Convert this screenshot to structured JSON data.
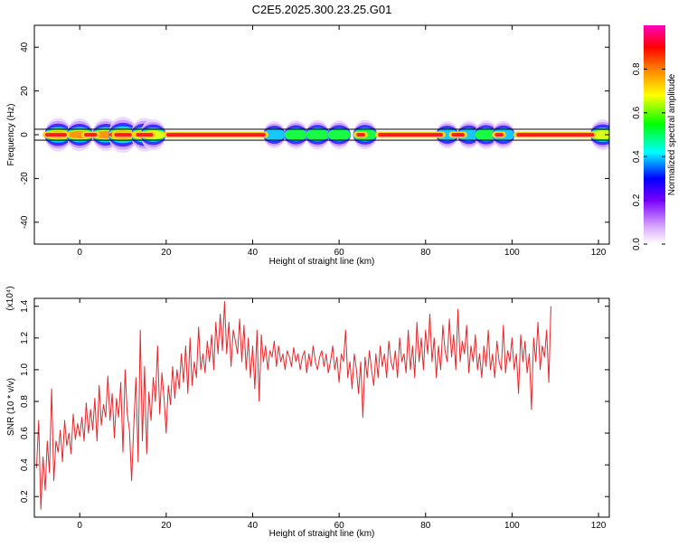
{
  "title": "C2E5.2025.300.23.25.G01",
  "colors": {
    "snr_line": "#e8262a",
    "axis": "#000000",
    "band_outline": "#000000"
  },
  "chart_data": [
    {
      "type": "heatmap",
      "xlabel": "Height of straight line (km)",
      "ylabel": "Frequency (Hz)",
      "xlim": [
        -10.5,
        122.5
      ],
      "ylim": [
        -50,
        50
      ],
      "xticks": [
        0,
        20,
        40,
        60,
        80,
        100,
        120
      ],
      "yticks": [
        -40,
        -20,
        0,
        20,
        40
      ],
      "colorbar": {
        "label": "Normalized spectral amplitude",
        "range": [
          0.0,
          1.0
        ],
        "ticks": [
          "0.0",
          "0.2",
          "0.4",
          "0.6",
          "0.8"
        ]
      },
      "band": {
        "center_hz": 0,
        "halfwidth_hz": 2.5
      },
      "bursts": [
        {
          "x": -5,
          "amp": 0.85
        },
        {
          "x": 0,
          "amp": 0.8
        },
        {
          "x": 6,
          "amp": 0.8
        },
        {
          "x": 10,
          "amp": 1.0
        },
        {
          "x": 15,
          "amp": 0.85
        },
        {
          "x": 17,
          "amp": 0.7
        },
        {
          "x": 45,
          "amp": 0.45
        },
        {
          "x": 50,
          "amp": 0.55
        },
        {
          "x": 55,
          "amp": 0.6
        },
        {
          "x": 60,
          "amp": 0.55
        },
        {
          "x": 66,
          "amp": 0.6
        },
        {
          "x": 85,
          "amp": 0.45
        },
        {
          "x": 90,
          "amp": 0.5
        },
        {
          "x": 94,
          "amp": 0.55
        },
        {
          "x": 98,
          "amp": 0.5
        },
        {
          "x": 121,
          "amp": 0.7
        }
      ],
      "ridges": [
        [
          -8,
          -3
        ],
        [
          1,
          4
        ],
        [
          8,
          12
        ],
        [
          13,
          17
        ],
        [
          20,
          43
        ],
        [
          64,
          66
        ],
        [
          69,
          84
        ],
        [
          86,
          89
        ],
        [
          96,
          98
        ],
        [
          101,
          119
        ]
      ]
    },
    {
      "type": "line",
      "xlabel": "Height of straight line (km)",
      "ylabel": "SNR (10 * v/v)",
      "scale_label": "(x10⁴)",
      "xlim": [
        -10.5,
        122.5
      ],
      "ylim": [
        0.07,
        1.45
      ],
      "xticks": [
        0,
        20,
        40,
        60,
        80,
        100,
        120
      ],
      "yticks": [
        "0.2",
        "0.4",
        "0.6",
        "0.8",
        "1.0",
        "1.2",
        "1.4"
      ],
      "series": [
        {
          "x_start": -10,
          "x_step": 0.5,
          "values": [
            0.38,
            0.68,
            0.12,
            0.45,
            0.24,
            0.55,
            0.35,
            0.88,
            0.3,
            0.55,
            0.48,
            0.62,
            0.42,
            0.68,
            0.52,
            0.6,
            0.47,
            0.72,
            0.56,
            0.66,
            0.58,
            0.7,
            0.55,
            0.79,
            0.6,
            0.75,
            0.62,
            0.82,
            0.55,
            0.9,
            0.65,
            0.78,
            0.7,
            0.96,
            0.68,
            0.85,
            0.57,
            0.82,
            0.7,
            0.92,
            0.48,
            1.0,
            0.72,
            0.62,
            0.3,
            0.65,
            0.95,
            0.42,
            1.25,
            0.55,
            1.02,
            0.47,
            0.86,
            0.68,
            0.95,
            0.8,
            1.15,
            0.72,
            0.98,
            0.82,
            0.6,
            0.9,
            0.78,
            1.02,
            0.82,
            1.0,
            0.88,
            1.1,
            0.92,
            1.15,
            0.85,
            1.2,
            0.9,
            1.05,
            0.95,
            1.27,
            1.0,
            1.1,
            0.98,
            1.18,
            1.05,
            1.22,
            1.0,
            1.3,
            1.1,
            1.35,
            1.12,
            1.43,
            1.1,
            1.3,
            1.02,
            1.25,
            1.18,
            1.1,
            1.32,
            1.05,
            1.28,
            1.0,
            1.2,
            0.95,
            1.15,
            0.88,
            1.25,
            0.8,
            1.22,
            1.05,
            1.15,
            1.0,
            1.12,
            1.08,
            1.18,
            1.02,
            1.15,
            1.05,
            1.1,
            1.0,
            1.12,
            1.08,
            1.02,
            1.14,
            1.05,
            1.1,
            1.0,
            1.08,
            1.12,
            0.98,
            1.1,
            1.02,
            1.15,
            1.05,
            1.0,
            1.08,
            1.12,
            1.02,
            1.1,
            0.98,
            1.05,
            1.15,
            1.0,
            1.08,
            0.92,
            1.1,
            1.05,
            1.25,
            0.95,
            1.05,
            0.88,
            1.1,
            1.0,
            0.85,
            1.05,
            0.7,
            1.08,
            0.95,
            1.12,
            1.0,
            0.9,
            1.1,
            0.95,
            1.15,
            1.02,
            1.1,
            0.95,
            1.18,
            1.05,
            1.0,
            1.12,
            0.95,
            1.2,
            1.05,
            1.1,
            0.98,
            1.25,
            1.0,
            1.15,
            0.95,
            1.3,
            1.05,
            1.2,
            1.0,
            1.25,
            1.1,
            1.35,
            1.05,
            1.2,
            0.95,
            1.15,
            1.0,
            1.28,
            1.12,
            1.05,
            1.32,
            1.08,
            1.22,
            1.0,
            1.38,
            1.05,
            1.18,
            1.1,
            1.28,
            0.98,
            1.15,
            1.05,
            1.22,
            1.0,
            1.1,
            0.95,
            1.15,
            1.02,
            1.25,
            1.0,
            1.1,
            0.95,
            1.18,
            1.05,
            1.0,
            1.28,
            0.98,
            1.12,
            1.05,
            1.2,
            1.0,
            1.1,
            0.85,
            1.22,
            1.05,
            1.18,
            0.98,
            1.1,
            0.75,
            1.2,
            1.05,
            1.3,
            1.0,
            1.15,
            1.08,
            1.25,
            0.92,
            1.4
          ]
        }
      ]
    }
  ]
}
